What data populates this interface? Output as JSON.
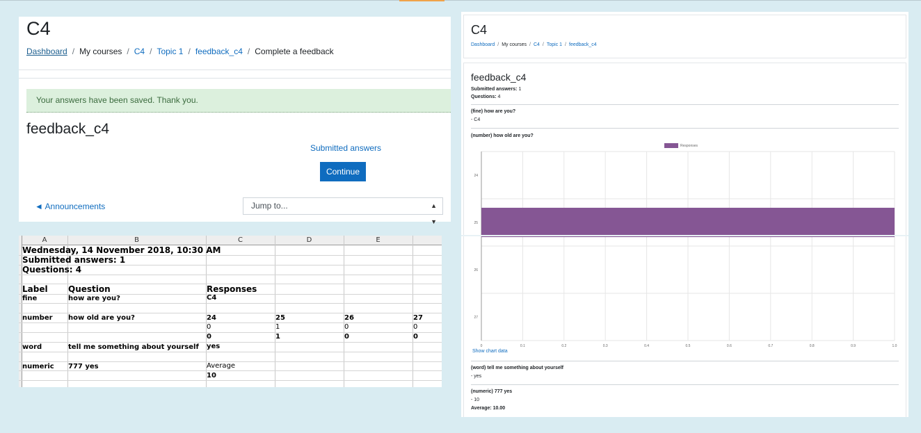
{
  "left_panel": {
    "course_title": "C4",
    "breadcrumb": [
      "Dashboard",
      "My courses",
      "C4",
      "Topic 1",
      "feedback_c4",
      "Complete a feedback"
    ],
    "alert": "Your answers have been saved. Thank you.",
    "feedback_title": "feedback_c4",
    "submitted_answers_link": "Submitted answers",
    "continue_label": "Continue",
    "prev_activity": "◄ Announcements",
    "jump_to": "Jump to..."
  },
  "spreadsheet": {
    "columns": [
      "A",
      "B",
      "C",
      "D",
      "E"
    ],
    "date": "Wednesday, 14 November 2018, 10:30 AM",
    "submitted": "Submitted answers: 1",
    "questions": "Questions: 4",
    "hdr_label": "Label",
    "hdr_question": "Question",
    "hdr_responses": "Responses",
    "r_fine_label": "fine",
    "r_fine_q": "how are you?",
    "r_fine_a": "C4",
    "r_num_label": "number",
    "r_num_q": "how old are you?",
    "r_num_vals": [
      "24",
      "25",
      "26",
      "27"
    ],
    "r_num_counts": [
      "0",
      "1",
      "0",
      "0"
    ],
    "r_num_totals": [
      "0",
      "1",
      "0",
      "0"
    ],
    "r_word_label": "word",
    "r_word_q": "tell me something about yourself",
    "r_word_a": "yes",
    "r_numeric_label": "numeric",
    "r_numeric_q": "777 yes",
    "r_avg_label": "Average",
    "r_avg_val": "10"
  },
  "right_panel": {
    "course_title": "C4",
    "breadcrumb": [
      "Dashboard",
      "My courses",
      "C4",
      "Topic 1",
      "feedback_c4"
    ],
    "feedback_title": "feedback_c4",
    "submitted_label": "Submitted answers:",
    "submitted_val": "1",
    "questions_label": "Questions:",
    "questions_val": "4",
    "q1": "(fine) how are you?",
    "a1": "- C4",
    "q2": "(number) how old are you?",
    "show_chart_data": "Show chart data",
    "q3": "(word) tell me something about yourself",
    "a3": "- yes",
    "q4": "(numeric) 777 yes",
    "a4": "- 10",
    "avg": "Average: 10.00"
  },
  "chart_data": {
    "type": "bar",
    "orientation": "horizontal",
    "categories": [
      "24",
      "25",
      "26",
      "27"
    ],
    "series": [
      {
        "name": "Responses",
        "values": [
          0,
          1,
          0,
          0
        ]
      }
    ],
    "xlim": [
      0,
      1
    ],
    "xticks": [
      "0",
      "0.1",
      "0.2",
      "0.3",
      "0.4",
      "0.5",
      "0.6",
      "0.7",
      "0.8",
      "0.9",
      "1.0"
    ],
    "legend": "top",
    "grid": true,
    "color": "#855694"
  }
}
